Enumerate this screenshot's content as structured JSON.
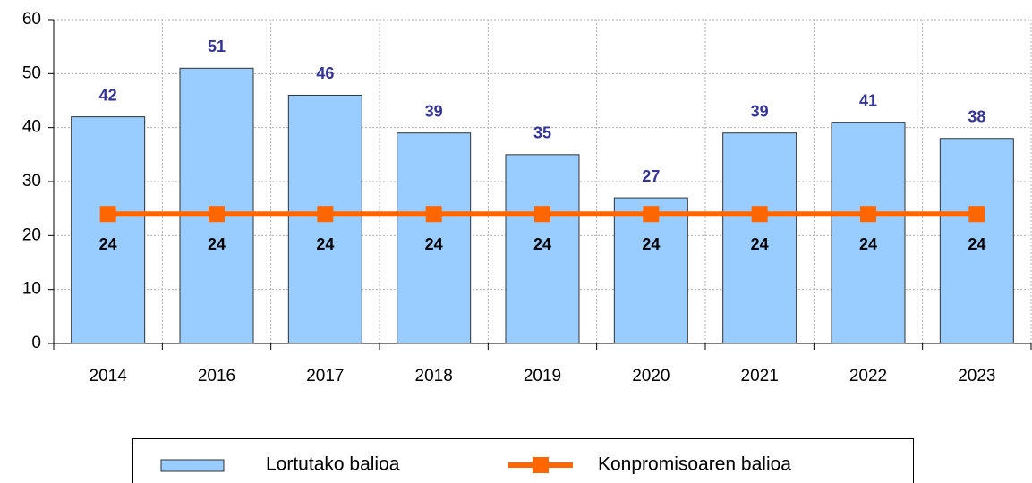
{
  "chart_data": {
    "type": "bar",
    "categories": [
      "2014",
      "2016",
      "2017",
      "2018",
      "2019",
      "2020",
      "2021",
      "2022",
      "2023"
    ],
    "series": [
      {
        "name": "Lortutako balioa",
        "type": "bar",
        "color": "#99ccff",
        "label_color": "#333399",
        "values": [
          42,
          51,
          46,
          39,
          35,
          27,
          39,
          41,
          38
        ]
      },
      {
        "name": "Konpromisoaren balioa",
        "type": "line",
        "color": "#ff6600",
        "label_color": "#000000",
        "values": [
          24,
          24,
          24,
          24,
          24,
          24,
          24,
          24,
          24
        ]
      }
    ],
    "ylim": [
      0,
      60
    ],
    "yticks": [
      0,
      10,
      20,
      30,
      40,
      50,
      60
    ],
    "grid": true,
    "legend": "bottom"
  }
}
